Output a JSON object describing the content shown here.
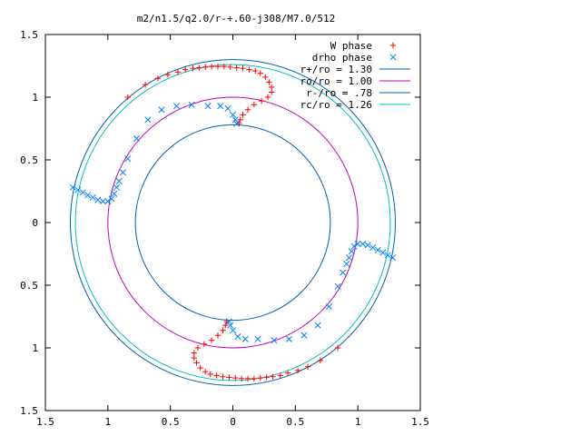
{
  "chart_data": {
    "type": "scatter",
    "title": "m2/n1.5/q2.0/r-+.60-j308/M7.0/512",
    "xlim": [
      -1.5,
      1.5
    ],
    "ylim": [
      -1.5,
      1.5
    ],
    "xticks": [
      -1.5,
      -1,
      -0.5,
      0,
      0.5,
      1,
      1.5
    ],
    "xtick_labels": [
      "1.5",
      "1",
      "0.5",
      "0",
      "0.5",
      "1",
      "1.5"
    ],
    "yticks": [
      1.5,
      1,
      0.5,
      0,
      -0.5,
      -1,
      -1.5
    ],
    "ytick_labels": [
      "1.5",
      "1",
      "0.5",
      "0",
      "0.5",
      "1",
      "1.5"
    ],
    "grid": false,
    "legend_position": "top-right",
    "series": [
      {
        "name": "W phase",
        "kind": "points",
        "marker": "plus",
        "color": "#ff0000",
        "points": [
          [
            -0.84,
            1.0
          ],
          [
            -0.7,
            1.1
          ],
          [
            -0.6,
            1.15
          ],
          [
            -0.52,
            1.18
          ],
          [
            -0.44,
            1.2
          ],
          [
            -0.38,
            1.22
          ],
          [
            -0.32,
            1.23
          ],
          [
            -0.27,
            1.235
          ],
          [
            -0.22,
            1.24
          ],
          [
            -0.17,
            1.245
          ],
          [
            -0.12,
            1.245
          ],
          [
            -0.07,
            1.245
          ],
          [
            -0.02,
            1.24
          ],
          [
            0.03,
            1.235
          ],
          [
            0.08,
            1.23
          ],
          [
            0.13,
            1.22
          ],
          [
            0.18,
            1.21
          ],
          [
            0.22,
            1.19
          ],
          [
            0.26,
            1.16
          ],
          [
            0.29,
            1.12
          ],
          [
            0.31,
            1.08
          ],
          [
            0.31,
            1.04
          ],
          [
            0.28,
            1.0
          ],
          [
            0.23,
            0.97
          ],
          [
            0.17,
            0.94
          ],
          [
            0.12,
            0.9
          ],
          [
            0.08,
            0.86
          ],
          [
            0.06,
            0.82
          ],
          [
            0.05,
            0.79
          ],
          [
            0.84,
            -1.0
          ],
          [
            0.7,
            -1.1
          ],
          [
            0.6,
            -1.15
          ],
          [
            0.52,
            -1.18
          ],
          [
            0.44,
            -1.2
          ],
          [
            0.38,
            -1.22
          ],
          [
            0.32,
            -1.23
          ],
          [
            0.27,
            -1.235
          ],
          [
            0.22,
            -1.24
          ],
          [
            0.17,
            -1.245
          ],
          [
            0.12,
            -1.245
          ],
          [
            0.07,
            -1.245
          ],
          [
            0.02,
            -1.24
          ],
          [
            -0.03,
            -1.235
          ],
          [
            -0.08,
            -1.23
          ],
          [
            -0.13,
            -1.22
          ],
          [
            -0.18,
            -1.21
          ],
          [
            -0.22,
            -1.19
          ],
          [
            -0.26,
            -1.16
          ],
          [
            -0.29,
            -1.12
          ],
          [
            -0.31,
            -1.08
          ],
          [
            -0.31,
            -1.04
          ],
          [
            -0.28,
            -1.0
          ],
          [
            -0.23,
            -0.97
          ],
          [
            -0.17,
            -0.94
          ],
          [
            -0.12,
            -0.9
          ],
          [
            -0.08,
            -0.86
          ],
          [
            -0.06,
            -0.82
          ],
          [
            -0.05,
            -0.79
          ]
        ]
      },
      {
        "name": "drho phase",
        "kind": "points",
        "marker": "cross",
        "color": "#0080ff",
        "points": [
          [
            -1.28,
            0.28
          ],
          [
            -1.24,
            0.26
          ],
          [
            -1.2,
            0.24
          ],
          [
            -1.16,
            0.22
          ],
          [
            -1.12,
            0.2
          ],
          [
            -1.08,
            0.18
          ],
          [
            -1.04,
            0.17
          ],
          [
            -1.0,
            0.17
          ],
          [
            -0.97,
            0.19
          ],
          [
            -0.95,
            0.23
          ],
          [
            -0.93,
            0.28
          ],
          [
            -0.91,
            0.33
          ],
          [
            -0.88,
            0.4
          ],
          [
            -0.84,
            0.51
          ],
          [
            -0.77,
            0.67
          ],
          [
            -0.68,
            0.82
          ],
          [
            -0.57,
            0.9
          ],
          [
            -0.45,
            0.93
          ],
          [
            -0.33,
            0.94
          ],
          [
            -0.2,
            0.93
          ],
          [
            -0.1,
            0.93
          ],
          [
            -0.04,
            0.91
          ],
          [
            0.0,
            0.86
          ],
          [
            0.02,
            0.82
          ],
          [
            0.03,
            0.79
          ],
          [
            1.28,
            -0.28
          ],
          [
            1.24,
            -0.26
          ],
          [
            1.2,
            -0.24
          ],
          [
            1.16,
            -0.22
          ],
          [
            1.12,
            -0.2
          ],
          [
            1.08,
            -0.18
          ],
          [
            1.04,
            -0.17
          ],
          [
            1.0,
            -0.17
          ],
          [
            0.97,
            -0.19
          ],
          [
            0.95,
            -0.23
          ],
          [
            0.93,
            -0.28
          ],
          [
            0.91,
            -0.33
          ],
          [
            0.88,
            -0.4
          ],
          [
            0.84,
            -0.51
          ],
          [
            0.77,
            -0.67
          ],
          [
            0.68,
            -0.82
          ],
          [
            0.57,
            -0.9
          ],
          [
            0.45,
            -0.93
          ],
          [
            0.33,
            -0.94
          ],
          [
            0.2,
            -0.93
          ],
          [
            0.1,
            -0.93
          ],
          [
            0.04,
            -0.91
          ],
          [
            0.0,
            -0.86
          ],
          [
            -0.02,
            -0.82
          ],
          [
            -0.03,
            -0.79
          ]
        ]
      },
      {
        "name": "r+/ro = 1.30",
        "kind": "circle",
        "radius": 1.3,
        "color": "#0060ad"
      },
      {
        "name": "ro/ro = 1.00",
        "kind": "circle",
        "radius": 1.0,
        "color": "#c000c0"
      },
      {
        "name": "r-/ro = .78",
        "kind": "circle",
        "radius": 0.78,
        "color": "#0060ad"
      },
      {
        "name": "rc/ro = 1.26",
        "kind": "circle",
        "radius": 1.26,
        "color": "#00c0c0"
      }
    ]
  }
}
